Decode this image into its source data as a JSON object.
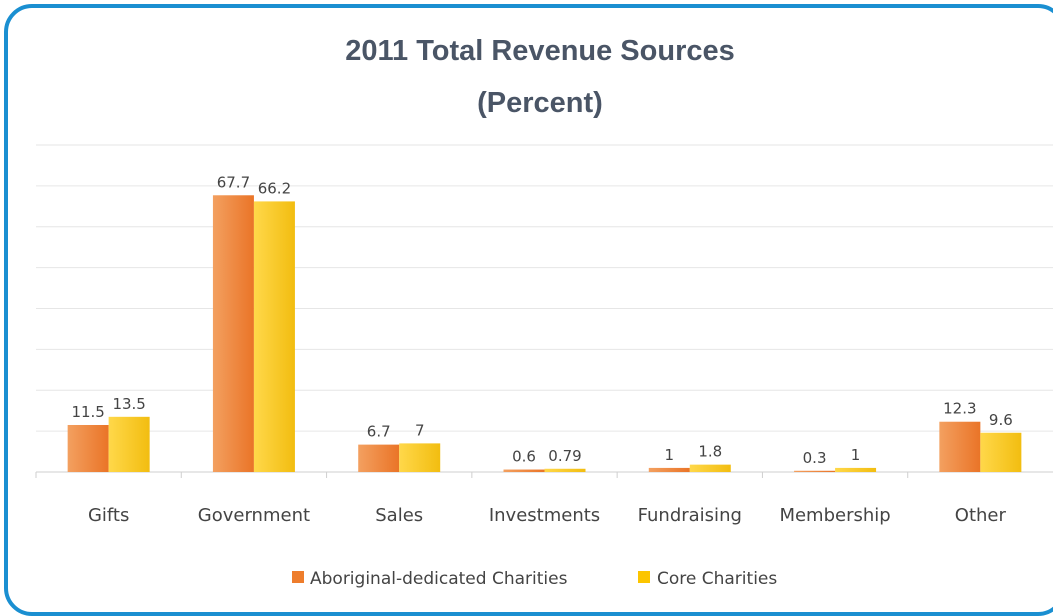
{
  "chart_data": {
    "type": "bar",
    "title": "2011 Total Revenue Sources",
    "subtitle": "(Percent)",
    "categories": [
      "Gifts",
      "Government",
      "Sales",
      "Investments",
      "Fundraising",
      "Membership",
      "Other"
    ],
    "series": [
      {
        "name": "Aboriginal-dedicated Charities",
        "color": "#ee7d2c",
        "values": [
          11.5,
          67.7,
          6.7,
          0.6,
          1,
          0.3,
          12.3
        ],
        "labels": [
          "11.5",
          "67.7",
          "6.7",
          "0.6",
          "1",
          "0.3",
          "12.3"
        ]
      },
      {
        "name": "Core Charities",
        "color": "#fcc500",
        "values": [
          13.5,
          66.2,
          7,
          0.79,
          1.8,
          1,
          9.6
        ],
        "labels": [
          "13.5",
          "66.2",
          "7",
          "0.79",
          "1.8",
          "1",
          "9.6"
        ]
      }
    ],
    "ylim": [
      0,
      80
    ],
    "grid": true,
    "legend_position": "bottom"
  }
}
